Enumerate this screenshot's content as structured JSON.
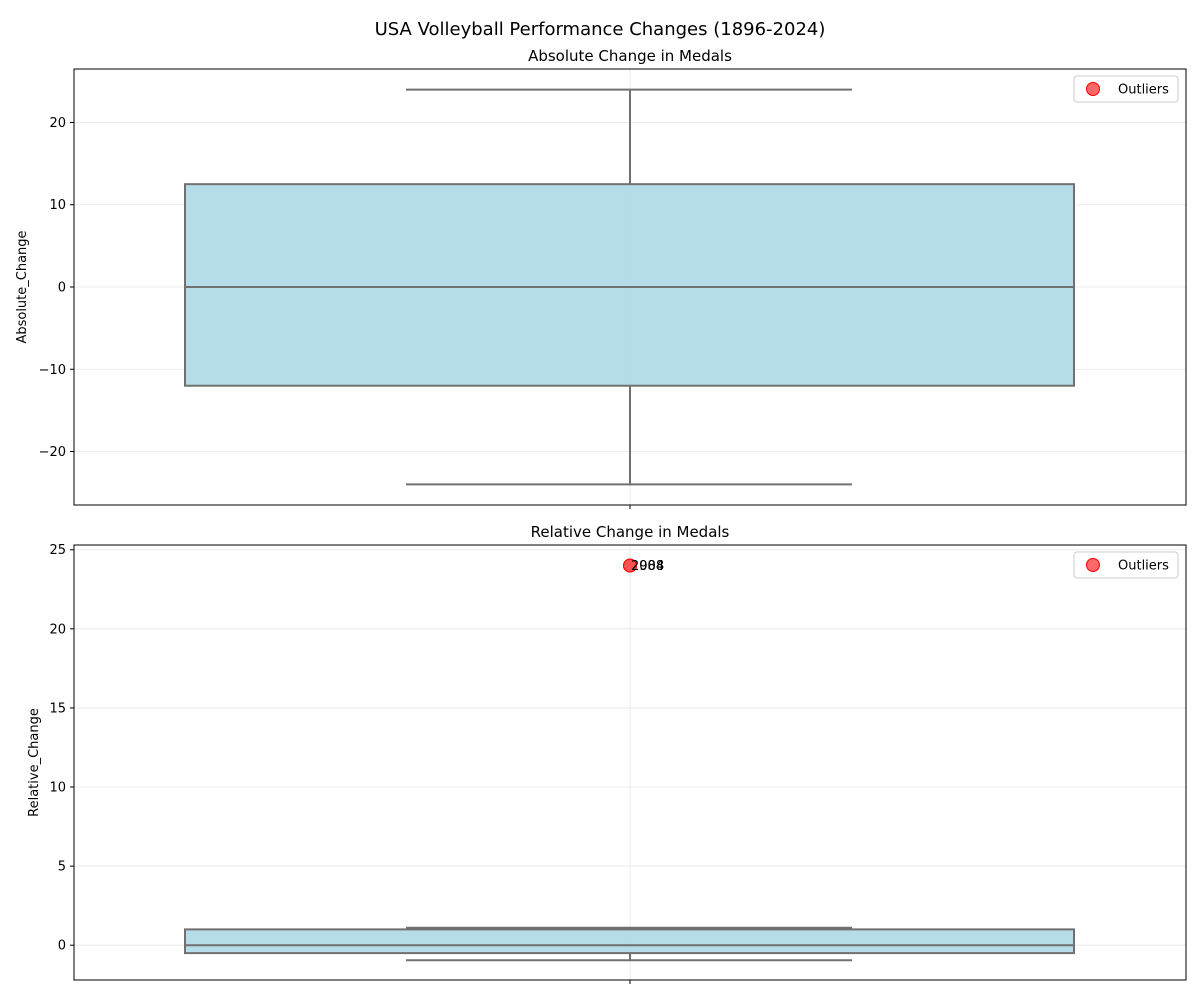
{
  "figure": {
    "title": "USA Volleyball Performance Changes (1896-2024)"
  },
  "chart_data": [
    {
      "type": "box",
      "title": "Absolute Change in Medals",
      "ylabel": "Absolute_Change",
      "xlabel": "",
      "ylim": [
        -26.5,
        26.5
      ],
      "yticks": [
        -20,
        -10,
        0,
        10,
        20
      ],
      "box": {
        "whisker_low": -24,
        "q1": -12,
        "median": 0,
        "q3": 12.5,
        "whisker_high": 24
      },
      "outliers": [],
      "legend": {
        "label": "Outliers",
        "position": "upper right"
      },
      "grid": true,
      "box_color": "#add8e6",
      "line_color": "#707070",
      "outlier_color": "#ff4d4d"
    },
    {
      "type": "box",
      "title": "Relative Change in Medals",
      "ylabel": "Relative_Change",
      "xlabel": "",
      "ylim": [
        -2.2,
        25.3
      ],
      "yticks": [
        0,
        5,
        10,
        15,
        20,
        25
      ],
      "box": {
        "whisker_low": -0.95,
        "q1": -0.5,
        "median": 0,
        "q3": 1.0,
        "whisker_high": 1.1
      },
      "outliers": [
        {
          "value": 24,
          "label": "1984"
        },
        {
          "value": 24,
          "label": "2008"
        }
      ],
      "legend": {
        "label": "Outliers",
        "position": "upper right"
      },
      "grid": true,
      "box_color": "#add8e6",
      "line_color": "#707070",
      "outlier_color": "#ff4d4d"
    }
  ]
}
